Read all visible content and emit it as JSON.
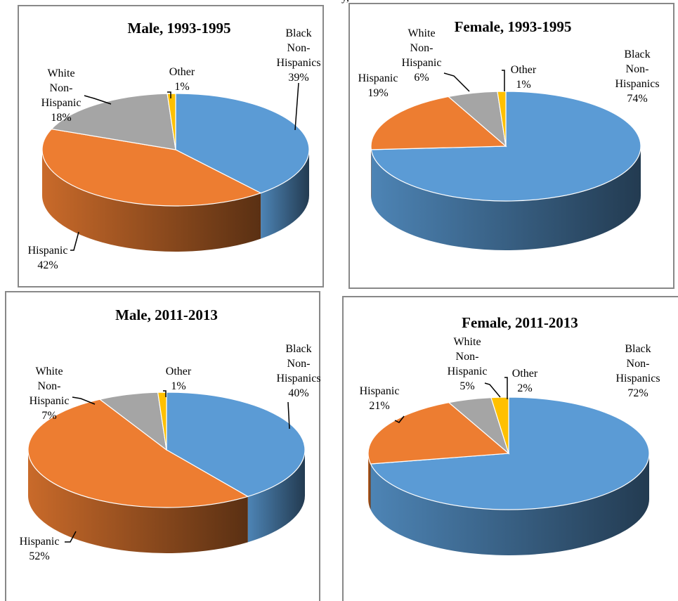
{
  "caption": "y,",
  "chart_data": [
    {
      "type": "pie",
      "title": "Male, 1993-1995",
      "categories": [
        "Black Non-Hispanics",
        "Hispanic",
        "White Non-Hispanic",
        "Other"
      ],
      "values": [
        39,
        42,
        18,
        1
      ],
      "value_labels": [
        "39%",
        "42%",
        "18%",
        "1%"
      ],
      "colors": [
        "#5b9bd5",
        "#ed7d31",
        "#a5a5a5",
        "#ffc000"
      ]
    },
    {
      "type": "pie",
      "title": "Female, 1993-1995",
      "categories": [
        "Black Non-Hispanics",
        "Hispanic",
        "White Non-Hispanic",
        "Other"
      ],
      "values": [
        74,
        19,
        6,
        1
      ],
      "value_labels": [
        "74%",
        "19%",
        "6%",
        "1%"
      ],
      "colors": [
        "#5b9bd5",
        "#ed7d31",
        "#a5a5a5",
        "#ffc000"
      ]
    },
    {
      "type": "pie",
      "title": "Male, 2011-2013",
      "categories": [
        "Black Non-Hispanics",
        "Hispanic",
        "White Non-Hispanic",
        "Other"
      ],
      "values": [
        40,
        52,
        7,
        1
      ],
      "value_labels": [
        "40%",
        "52%",
        "7%",
        "1%"
      ],
      "colors": [
        "#5b9bd5",
        "#ed7d31",
        "#a5a5a5",
        "#ffc000"
      ]
    },
    {
      "type": "pie",
      "title": "Female, 2011-2013",
      "categories": [
        "Black Non-Hispanics",
        "Hispanic",
        "White Non-Hispanic",
        "Other"
      ],
      "values": [
        72,
        21,
        5,
        2
      ],
      "value_labels": [
        "72%",
        "21%",
        "5%",
        "2%"
      ],
      "colors": [
        "#5b9bd5",
        "#ed7d31",
        "#a5a5a5",
        "#ffc000"
      ]
    }
  ]
}
